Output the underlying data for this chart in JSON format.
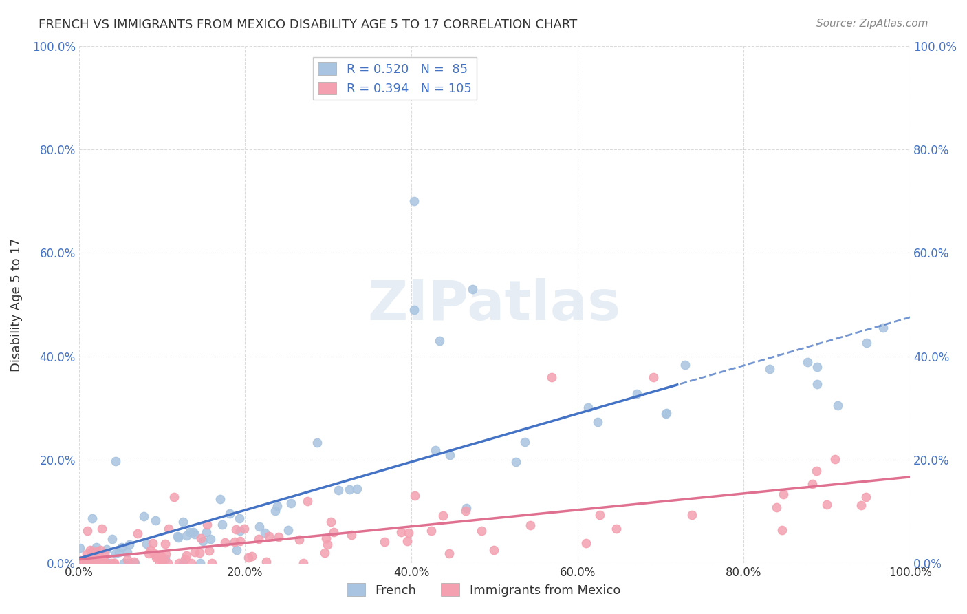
{
  "title": "FRENCH VS IMMIGRANTS FROM MEXICO DISABILITY AGE 5 TO 17 CORRELATION CHART",
  "source": "Source: ZipAtlas.com",
  "ylabel": "Disability Age 5 to 17",
  "xlim": [
    0.0,
    1.0
  ],
  "ylim": [
    0.0,
    1.0
  ],
  "french_R": 0.52,
  "french_N": 85,
  "mexico_R": 0.394,
  "mexico_N": 105,
  "french_color": "#a8c4e0",
  "mexico_color": "#f4a0b0",
  "french_line_color": "#4472c4",
  "mexico_line_color": "#e07090",
  "legend_labels": [
    "French",
    "Immigrants from Mexico"
  ],
  "watermark": "ZIPatlas",
  "background_color": "#ffffff",
  "grid_color": "#cccccc"
}
